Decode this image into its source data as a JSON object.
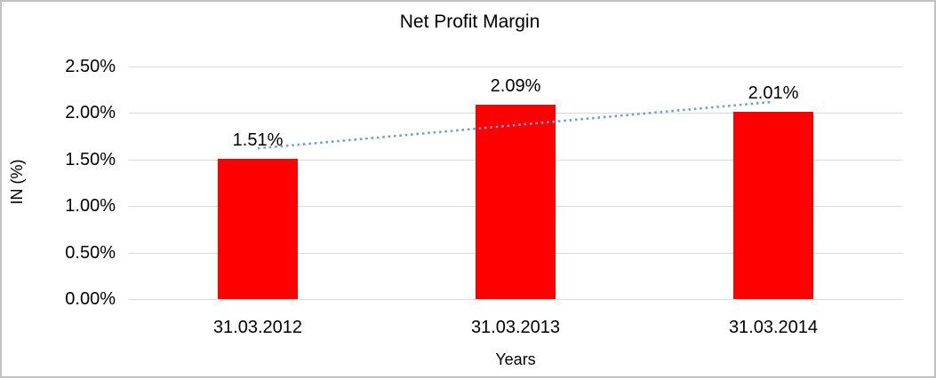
{
  "chart_data": {
    "type": "bar",
    "title": "Net Profit Margin",
    "xlabel": "Years",
    "ylabel": "IN (%)",
    "categories": [
      "31.03.2012",
      "31.03.2013",
      "31.03.2014"
    ],
    "series": [
      {
        "name": "Net Profit Margin",
        "values": [
          1.51,
          2.09,
          2.01
        ]
      }
    ],
    "data_labels": [
      "1.51%",
      "2.09%",
      "2.01%"
    ],
    "ylim": [
      0,
      2.5
    ],
    "ytick_values": [
      0,
      0.5,
      1.0,
      1.5,
      2.0,
      2.5
    ],
    "ytick_labels": [
      "0.00%",
      "0.50%",
      "1.00%",
      "1.50%",
      "2.00%",
      "2.50%"
    ],
    "grid": true,
    "legend_position": "none",
    "bar_color": "#ff0000",
    "gridline_color": "#d9d9d9",
    "text_color": "#000000",
    "trendline": {
      "type": "linear",
      "style": "dotted",
      "color": "#6fa0d2"
    },
    "frame_border_color": "#c2c2c2",
    "background_color": "#ffffff"
  }
}
